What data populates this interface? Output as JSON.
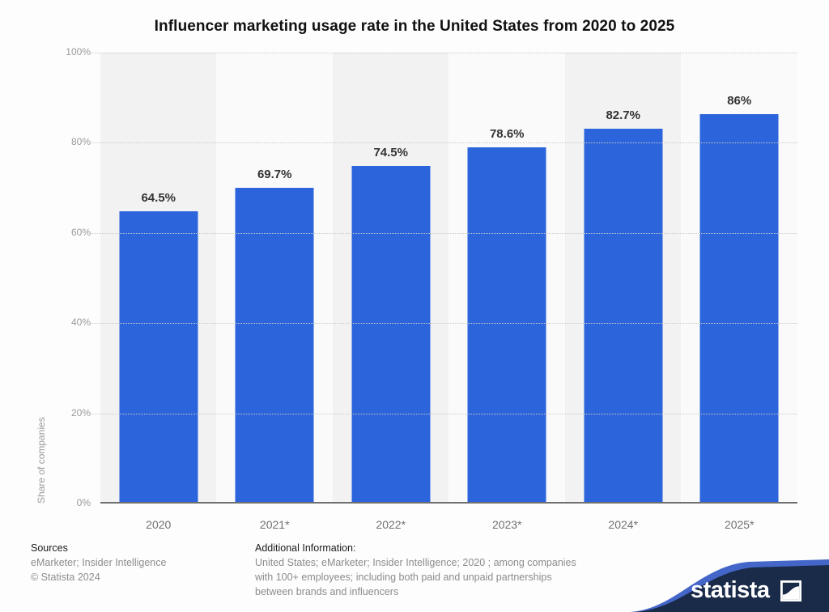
{
  "page": {
    "title": "Influencer marketing usage rate in the United States from 2020 to 2025"
  },
  "chart_data": {
    "type": "bar",
    "title": "Influencer marketing usage rate in the United States from 2020 to 2025",
    "categories": [
      "2020",
      "2021*",
      "2022*",
      "2023*",
      "2024*",
      "2025*"
    ],
    "values": [
      64.5,
      69.7,
      74.5,
      78.6,
      82.7,
      86
    ],
    "value_labels": [
      "64.5%",
      "69.7%",
      "74.5%",
      "78.6%",
      "82.7%",
      "86%"
    ],
    "xlabel": "",
    "ylabel": "Share of companies",
    "ylim": [
      0,
      100
    ],
    "yticks": [
      {
        "value": 0,
        "label": "0%"
      },
      {
        "value": 20,
        "label": "20%"
      },
      {
        "value": 40,
        "label": "40%"
      },
      {
        "value": 60,
        "label": "60%"
      },
      {
        "value": 80,
        "label": "80%"
      },
      {
        "value": 100,
        "label": "100%"
      }
    ],
    "grid": "horizontal-dotted",
    "legend_position": "none",
    "colors": {
      "bar": "#2c64dc",
      "band_even": "#f2f2f2",
      "band_odd": "#fafafa",
      "gridline": "#c9c9c9",
      "axis_line": "#6e6e6e"
    }
  },
  "footer": {
    "sources_label": "Sources",
    "sources_line1": "eMarketer; Insider Intelligence",
    "sources_line2": "© Statista 2024",
    "additional_label": "Additional Information:",
    "additional_line1": "United States; eMarketer; Insider Intelligence; 2020 ; among companies",
    "additional_line2": "with 100+ employees; including both paid and unpaid partnerships",
    "additional_line3": "between brands and influencers"
  },
  "branding": {
    "logo_text": "statista",
    "navy": "#1a2a49",
    "accent_blue": "#4566c9"
  }
}
